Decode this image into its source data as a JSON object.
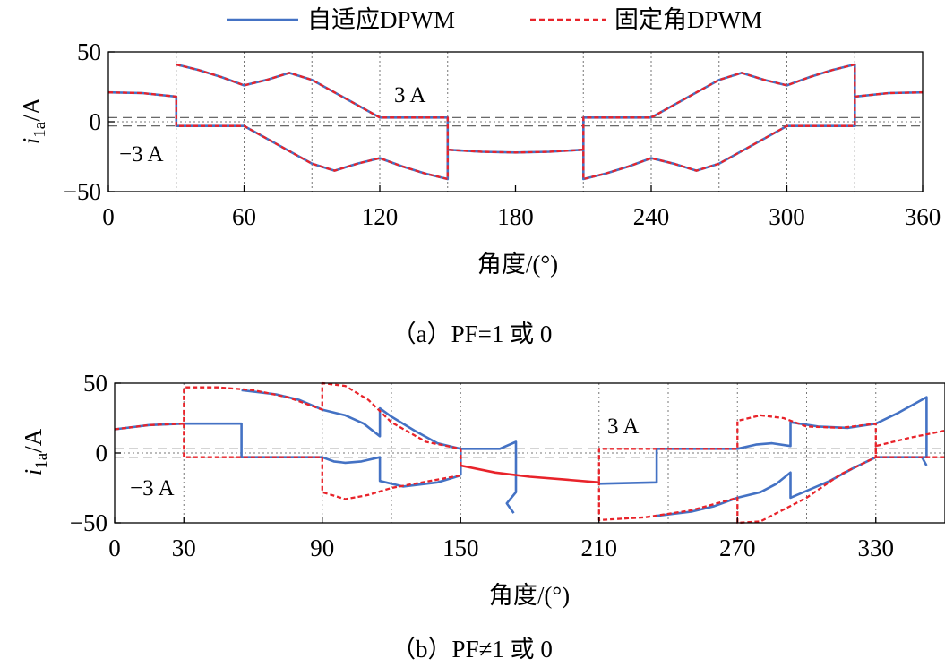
{
  "legend": {
    "adaptive": "自适应DPWM",
    "fixed": "固定角DPWM"
  },
  "colors": {
    "adaptive": "#4472c4",
    "fixed": "#e8232a"
  },
  "chart_data": [
    {
      "type": "line",
      "caption": "（a）PF=1 或 0",
      "xlabel": "角度/(°)",
      "ylabel": "i_1a/A",
      "xlim": [
        0,
        360
      ],
      "ylim": [
        -50,
        50
      ],
      "xticks": [
        "0",
        "60",
        "120",
        "180",
        "240",
        "300",
        "360"
      ],
      "yticks": [
        "50",
        "0",
        "−50"
      ],
      "vgrid": [
        30,
        60,
        90,
        120,
        150,
        210,
        240,
        270,
        300,
        330
      ],
      "hlines": [
        3,
        -3
      ],
      "annotations": [
        "3 A",
        "−3 A"
      ],
      "series": [
        {
          "key": "adaptive",
          "label": "自适应DPWM",
          "style": "solid",
          "segments": [
            [
              [
                0,
                21
              ],
              [
                15,
                20.5
              ],
              [
                30,
                18
              ],
              [
                30,
                -3
              ],
              [
                60,
                -3
              ],
              [
                70,
                -12
              ],
              [
                80,
                -21
              ],
              [
                90,
                -30
              ],
              [
                100,
                -35
              ],
              [
                110,
                -30
              ],
              [
                120,
                -26
              ],
              [
                130,
                -32
              ],
              [
                140,
                -37
              ],
              [
                150,
                -41
              ],
              [
                150,
                -20
              ],
              [
                165,
                -21.5
              ],
              [
                180,
                -22
              ],
              [
                195,
                -21.5
              ],
              [
                210,
                -20
              ],
              [
                210,
                -41
              ],
              [
                220,
                -37
              ],
              [
                230,
                -32
              ],
              [
                240,
                -26
              ],
              [
                250,
                -30
              ],
              [
                260,
                -35
              ],
              [
                270,
                -30
              ],
              [
                280,
                -21
              ],
              [
                290,
                -12
              ],
              [
                300,
                -3
              ],
              [
                330,
                -3
              ],
              [
                330,
                18
              ],
              [
                345,
                20.5
              ],
              [
                360,
                21
              ]
            ],
            [
              [
                30,
                41
              ],
              [
                40,
                37
              ],
              [
                50,
                32
              ],
              [
                60,
                26
              ],
              [
                70,
                30
              ],
              [
                80,
                35
              ],
              [
                90,
                30
              ],
              [
                100,
                21
              ],
              [
                110,
                12
              ],
              [
                120,
                3
              ],
              [
                150,
                3
              ],
              [
                150,
                -20
              ]
            ],
            [
              [
                210,
                -20
              ],
              [
                210,
                3
              ],
              [
                240,
                3
              ],
              [
                250,
                12
              ],
              [
                260,
                21
              ],
              [
                270,
                30
              ],
              [
                280,
                35
              ],
              [
                290,
                30
              ],
              [
                300,
                26
              ],
              [
                310,
                32
              ],
              [
                320,
                37
              ],
              [
                330,
                41
              ],
              [
                330,
                18
              ]
            ]
          ]
        },
        {
          "key": "fixed",
          "label": "固定角DPWM",
          "style": "dashed",
          "segments": [
            [
              [
                0,
                21
              ],
              [
                15,
                20.5
              ],
              [
                30,
                18
              ],
              [
                30,
                -3
              ],
              [
                60,
                -3
              ],
              [
                70,
                -12
              ],
              [
                80,
                -21
              ],
              [
                90,
                -30
              ],
              [
                100,
                -35
              ],
              [
                110,
                -30
              ],
              [
                120,
                -26
              ],
              [
                130,
                -32
              ],
              [
                140,
                -37
              ],
              [
                150,
                -41
              ],
              [
                150,
                -20
              ],
              [
                165,
                -21.5
              ],
              [
                180,
                -22
              ],
              [
                195,
                -21.5
              ],
              [
                210,
                -20
              ],
              [
                210,
                -41
              ],
              [
                220,
                -37
              ],
              [
                230,
                -32
              ],
              [
                240,
                -26
              ],
              [
                250,
                -30
              ],
              [
                260,
                -35
              ],
              [
                270,
                -30
              ],
              [
                280,
                -21
              ],
              [
                290,
                -12
              ],
              [
                300,
                -3
              ],
              [
                330,
                -3
              ],
              [
                330,
                18
              ],
              [
                345,
                20.5
              ],
              [
                360,
                21
              ]
            ],
            [
              [
                30,
                41
              ],
              [
                40,
                37
              ],
              [
                50,
                32
              ],
              [
                60,
                26
              ],
              [
                70,
                30
              ],
              [
                80,
                35
              ],
              [
                90,
                30
              ],
              [
                100,
                21
              ],
              [
                110,
                12
              ],
              [
                120,
                3
              ],
              [
                150,
                3
              ],
              [
                150,
                -20
              ]
            ],
            [
              [
                210,
                -20
              ],
              [
                210,
                3
              ],
              [
                240,
                3
              ],
              [
                250,
                12
              ],
              [
                260,
                21
              ],
              [
                270,
                30
              ],
              [
                280,
                35
              ],
              [
                290,
                30
              ],
              [
                300,
                26
              ],
              [
                310,
                32
              ],
              [
                320,
                37
              ],
              [
                330,
                41
              ],
              [
                330,
                18
              ]
            ]
          ]
        }
      ]
    },
    {
      "type": "line",
      "caption": "（b）PF≠1 或 0",
      "xlabel": "角度/(°)",
      "ylabel": "i_1a/A",
      "xlim": [
        0,
        360
      ],
      "ylim": [
        -50,
        50
      ],
      "xticks": [
        "0",
        "30",
        "90",
        "150",
        "210",
        "270",
        "330"
      ],
      "yticks": [
        "50",
        "0",
        "−50"
      ],
      "vgrid": [
        30,
        60,
        90,
        120,
        150,
        210,
        240,
        270,
        300,
        330
      ],
      "hlines": [
        3,
        -3
      ],
      "annotations": [
        "3 A",
        "−3 A"
      ],
      "series": [
        {
          "key": "adaptive",
          "label": "自适应DPWM",
          "style": "solid",
          "segments": [
            [
              [
                0,
                17
              ],
              [
                15,
                20
              ],
              [
                30,
                21
              ],
              [
                45,
                21
              ],
              [
                55,
                21
              ],
              [
                55,
                -3
              ],
              [
                90,
                -3
              ],
              [
                95,
                -6
              ],
              [
                100,
                -7
              ],
              [
                107,
                -6
              ],
              [
                115,
                -3
              ],
              [
                115,
                -20
              ],
              [
                125,
                -24
              ],
              [
                140,
                -21
              ],
              [
                150,
                -16
              ]
            ],
            [
              [
                55,
                45
              ],
              [
                70,
                42
              ],
              [
                80,
                38
              ],
              [
                90,
                31
              ],
              [
                100,
                27
              ],
              [
                108,
                21
              ],
              [
                115,
                12
              ],
              [
                115,
                32
              ],
              [
                120,
                26
              ],
              [
                130,
                16
              ],
              [
                140,
                7
              ],
              [
                150,
                3
              ],
              [
                167,
                3
              ],
              [
                174,
                8
              ],
              [
                174,
                -28
              ],
              [
                170,
                -36
              ],
              [
                173,
                -43
              ]
            ],
            [
              [
                150,
                -16
              ],
              [
                150,
                3
              ]
            ],
            [
              [
                210,
                -22
              ],
              [
                235,
                -21
              ],
              [
                235,
                3
              ],
              [
                270,
                3
              ],
              [
                278,
                6
              ],
              [
                285,
                7
              ],
              [
                293,
                5
              ],
              [
                293,
                22
              ],
              [
                305,
                19
              ],
              [
                318,
                18
              ],
              [
                330,
                21
              ],
              [
                340,
                29
              ],
              [
                352,
                40
              ],
              [
                352,
                -3
              ],
              [
                330,
                -3
              ]
            ],
            [
              [
                235,
                -45
              ],
              [
                250,
                -42
              ],
              [
                260,
                -38
              ],
              [
                270,
                -32
              ],
              [
                280,
                -28
              ],
              [
                287,
                -22
              ],
              [
                293,
                -14
              ],
              [
                293,
                -32
              ],
              [
                310,
                -20
              ],
              [
                320,
                -11
              ],
              [
                330,
                -3
              ]
            ],
            [
              [
                350,
                -3
              ],
              [
                352,
                -9
              ]
            ]
          ]
        },
        {
          "key": "fixed",
          "label": "固定角DPWM",
          "style": "dashed",
          "segments": [
            [
              [
                0,
                17
              ],
              [
                15,
                20
              ],
              [
                30,
                21
              ],
              [
                30,
                47
              ],
              [
                45,
                47
              ],
              [
                60,
                45
              ],
              [
                75,
                40
              ],
              [
                90,
                31
              ],
              [
                90,
                50
              ],
              [
                100,
                48
              ],
              [
                110,
                38
              ],
              [
                120,
                22
              ],
              [
                135,
                8
              ],
              [
                150,
                3
              ],
              [
                150,
                -9
              ]
            ],
            [
              [
                30,
                21
              ],
              [
                30,
                -3
              ],
              [
                90,
                -3
              ],
              [
                90,
                -28
              ],
              [
                100,
                -33
              ],
              [
                110,
                -30
              ],
              [
                120,
                -25
              ],
              [
                130,
                -22
              ],
              [
                150,
                -16
              ]
            ],
            [
              [
                210,
                -20
              ],
              [
                210,
                -48
              ],
              [
                230,
                -46
              ],
              [
                250,
                -41
              ],
              [
                270,
                -32
              ],
              [
                270,
                -50
              ],
              [
                280,
                -49
              ],
              [
                300,
                -32
              ],
              [
                315,
                -15
              ],
              [
                330,
                -3
              ],
              [
                330,
                5
              ],
              [
                345,
                11
              ],
              [
                360,
                16
              ]
            ],
            [
              [
                210,
                -20
              ],
              [
                210,
                3
              ],
              [
                270,
                3
              ],
              [
                270,
                23
              ],
              [
                280,
                27
              ],
              [
                290,
                25
              ],
              [
                300,
                19
              ],
              [
                315,
                18
              ],
              [
                330,
                21
              ],
              [
                330,
                -3
              ],
              [
                360,
                -3
              ]
            ]
          ]
        },
        {
          "key": "fixed",
          "label": "",
          "style": "solid",
          "segments": [
            [
              [
                150,
                -9
              ],
              [
                165,
                -14
              ],
              [
                180,
                -17
              ],
              [
                195,
                -19
              ],
              [
                210,
                -21
              ]
            ]
          ]
        }
      ]
    }
  ]
}
